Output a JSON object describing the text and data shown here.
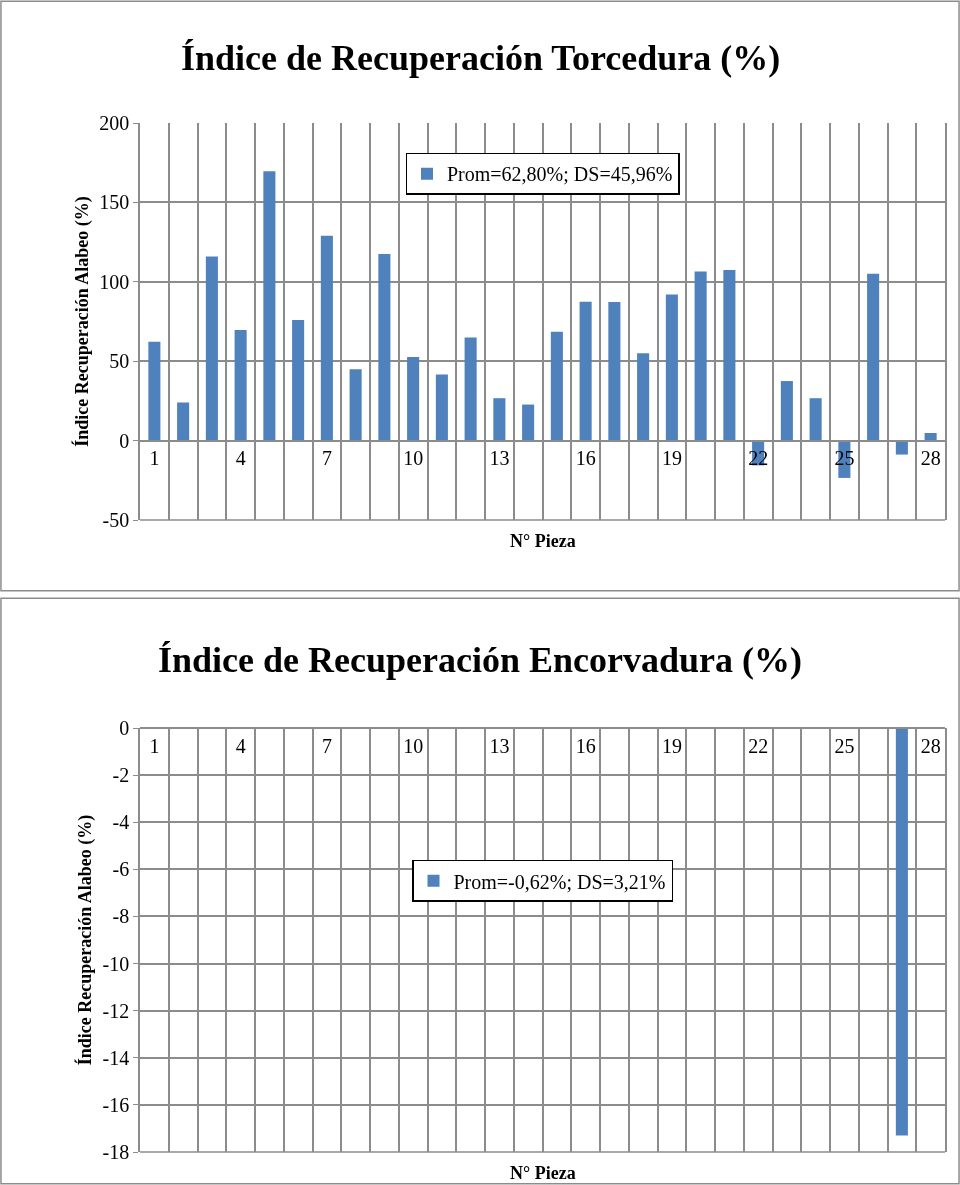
{
  "chart_data": [
    {
      "type": "bar",
      "title": "Índice de Recuperación Torcedura (%)",
      "xlabel": "N° Pieza",
      "ylabel": "Índice Recuperación Alabeo (%)",
      "categories": [
        "1",
        null,
        null,
        "4",
        null,
        null,
        "7",
        null,
        null,
        "10",
        null,
        null,
        "13",
        null,
        null,
        "16",
        null,
        null,
        "19",
        null,
        null,
        "22",
        null,
        null,
        "25",
        null,
        null,
        "28"
      ],
      "series": [
        {
          "name": "Prom=62,80%; DS=45,96%",
          "color": "#4f81bd",
          "values": [
            62.3,
            24,
            116,
            69.6,
            169.6,
            76,
            129,
            45,
            117.5,
            52.7,
            41.7,
            65,
            26.7,
            22.7,
            68.5,
            87.5,
            87.3,
            55,
            92,
            106.5,
            107.5,
            -15.6,
            37.5,
            26.7,
            -23.5,
            105,
            -8.8,
            4.8
          ]
        }
      ],
      "ylim": [
        -50,
        200
      ],
      "yticks": [
        -50,
        0,
        50,
        100,
        150,
        200
      ],
      "grid": true,
      "legend": "top"
    },
    {
      "type": "bar",
      "title": "Índice de Recuperación Encorvadura (%)",
      "xlabel": "N° Pieza",
      "ylabel": "Índice Recuperación Alabeo (%)",
      "categories": [
        "1",
        null,
        null,
        "4",
        null,
        null,
        "7",
        null,
        null,
        "10",
        null,
        null,
        "13",
        null,
        null,
        "16",
        null,
        null,
        "19",
        null,
        null,
        "22",
        null,
        null,
        "25",
        null,
        null,
        "28"
      ],
      "series": [
        {
          "name": "Prom=-0,62%; DS=3,21%",
          "color": "#4f81bd",
          "values": [
            0,
            0,
            0,
            0,
            0,
            0,
            0,
            0,
            0,
            0,
            0,
            0,
            0,
            0,
            0,
            0,
            0,
            0,
            0,
            0,
            0,
            0,
            0,
            0,
            0,
            0,
            -17.3,
            0
          ]
        }
      ],
      "ylim": [
        -18,
        0
      ],
      "yticks": [
        -18,
        -16,
        -14,
        -12,
        -10,
        -8,
        -6,
        -4,
        -2,
        0
      ],
      "grid": true,
      "legend": "center"
    }
  ]
}
